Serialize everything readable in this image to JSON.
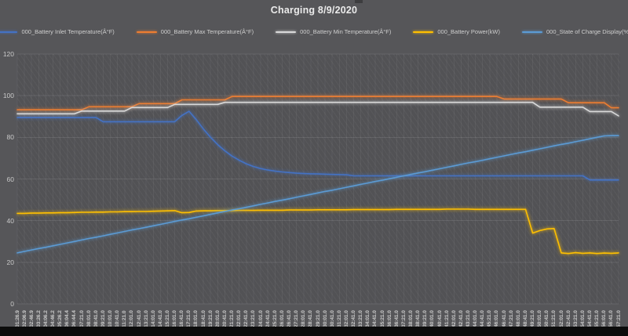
{
  "title": "Charging 8/9/2020",
  "colors": {
    "background": "#565659",
    "grid_horizontal": "rgba(255,255,255,0.10)",
    "grid_vertical": "rgba(255,255,255,0.055)",
    "axis_label": "#c9c9c9",
    "title_text": "#ebebeb"
  },
  "chart_data": {
    "type": "line",
    "title": "Charging 8/9/2020",
    "xlabel": "",
    "ylabel": "",
    "ylim": [
      0,
      120
    ],
    "y_ticks": [
      0,
      20,
      40,
      60,
      80,
      100,
      120
    ],
    "grid": true,
    "legend_position": "top",
    "x_ticks": [
      "01:26.9",
      "02:06.9",
      "02:46.9",
      "03:26.2",
      "04:06.2",
      "04:46.2",
      "05:26.2",
      "06:04.4",
      "06:44.4",
      "07:21.0",
      "08:01.0",
      "08:41.0",
      "09:21.0",
      "10:01.0",
      "10:41.0",
      "11:21.0",
      "12:01.0",
      "12:41.0",
      "13:21.0",
      "14:01.0",
      "14:41.0",
      "15:21.0",
      "16:01.0",
      "16:41.0",
      "17:21.0",
      "18:01.0",
      "18:41.0",
      "19:21.0",
      "20:01.0",
      "20:41.0",
      "21:21.0",
      "22:01.0",
      "22:41.0",
      "23:21.0",
      "24:01.0",
      "24:41.0",
      "25:21.0",
      "26:01.0",
      "26:41.0",
      "27:21.0",
      "28:01.0",
      "28:41.0",
      "29:21.0",
      "30:01.0",
      "30:41.0",
      "31:21.0",
      "32:01.0",
      "32:41.0",
      "33:21.0",
      "34:01.0",
      "34:41.0",
      "35:21.0",
      "36:01.0",
      "36:41.0",
      "37:21.0",
      "38:01.0",
      "38:41.0",
      "39:21.0",
      "40:01.0",
      "40:41.0",
      "41:21.0",
      "42:01.0",
      "42:41.0",
      "43:21.0",
      "44:01.0",
      "44:41.0",
      "45:21.0",
      "46:01.0",
      "46:41.0",
      "47:21.0",
      "48:01.0",
      "48:41.0",
      "49:21.0",
      "50:01.0",
      "50:41.0",
      "51:21.0",
      "52:01.0",
      "52:41.0",
      "53:21.0",
      "54:01.0",
      "54:41.0",
      "55:21.0",
      "56:01.0",
      "56:41.0",
      "57:21.0"
    ],
    "series": [
      {
        "name": "000_Battery Inlet Temperature(Â°F)",
        "color": "#4472c4",
        "values": [
          89.5,
          89.5,
          89.5,
          89.5,
          89.5,
          89.5,
          89.5,
          89.5,
          89.5,
          89.5,
          89.5,
          89.5,
          87.5,
          87.5,
          87.5,
          87.5,
          87.5,
          87.5,
          87.5,
          87.5,
          87.5,
          87.5,
          87.5,
          90.5,
          92.5,
          88.5,
          84,
          80,
          76.5,
          73.5,
          71,
          69,
          67.3,
          66,
          65,
          64.3,
          63.8,
          63.4,
          63.1,
          62.8,
          62.6,
          62.5,
          62.4,
          62.3,
          62.2,
          62.1,
          62,
          61.5,
          61.5,
          61.5,
          61.5,
          61.5,
          61.5,
          61.5,
          61.5,
          61.5,
          61.5,
          61.5,
          61.5,
          61.5,
          61.5,
          61.5,
          61.5,
          61.5,
          61.5,
          61.5,
          61.5,
          61.5,
          61.5,
          61.5,
          61.5,
          61.5,
          61.5,
          61.5,
          61.5,
          61.5,
          61.5,
          61.5,
          61.5,
          61.5,
          59.5,
          59.5,
          59.5,
          59.5,
          59.5
        ]
      },
      {
        "name": "000_Battery Max Temperature(Â°F)",
        "color": "#ed7d31",
        "values": [
          93.2,
          93.2,
          93.2,
          93.2,
          93.2,
          93.2,
          93.2,
          93.2,
          93.2,
          93.2,
          94.7,
          94.7,
          94.7,
          94.7,
          94.7,
          94.7,
          94.7,
          96.2,
          96.2,
          96.2,
          96.2,
          96.2,
          96.2,
          98,
          98,
          98,
          98,
          98,
          98,
          98,
          99.6,
          99.6,
          99.6,
          99.6,
          99.6,
          99.6,
          99.6,
          99.6,
          99.6,
          99.6,
          99.6,
          99.6,
          99.6,
          99.6,
          99.6,
          99.6,
          99.6,
          99.6,
          99.6,
          99.6,
          99.6,
          99.6,
          99.6,
          99.6,
          99.6,
          99.6,
          99.6,
          99.6,
          99.6,
          99.6,
          99.6,
          99.6,
          99.6,
          99.6,
          99.6,
          99.6,
          99.6,
          99.6,
          98.4,
          98.4,
          98.4,
          98.4,
          98.4,
          98.4,
          98.4,
          98.4,
          98.4,
          96.6,
          96.6,
          96.6,
          96.6,
          96.6,
          96.6,
          94.2,
          94.2
        ]
      },
      {
        "name": "000_Battery Min Temperature(Â°F)",
        "color": "#d9d9d9",
        "values": [
          91.3,
          91.3,
          91.3,
          91.3,
          91.3,
          91.3,
          91.3,
          91.3,
          91.3,
          92.6,
          92.6,
          92.6,
          92.6,
          92.6,
          92.6,
          92.6,
          94.3,
          94.3,
          94.3,
          94.3,
          94.3,
          94.3,
          95.8,
          95.8,
          95.8,
          95.8,
          95.8,
          95.8,
          95.8,
          96.8,
          96.8,
          96.8,
          96.8,
          96.8,
          96.8,
          96.8,
          96.8,
          96.8,
          96.8,
          96.8,
          96.8,
          96.8,
          96.8,
          96.8,
          96.8,
          96.8,
          96.8,
          96.8,
          96.8,
          96.8,
          96.8,
          96.8,
          96.8,
          96.8,
          96.8,
          96.8,
          96.8,
          96.8,
          96.8,
          96.8,
          96.8,
          96.8,
          96.8,
          96.8,
          96.8,
          96.8,
          96.8,
          96.8,
          96.8,
          96.8,
          96.8,
          96.8,
          96.8,
          94.5,
          94.5,
          94.5,
          94.5,
          94.5,
          94.5,
          94.5,
          92.4,
          92.4,
          92.4,
          92.4,
          90.3
        ]
      },
      {
        "name": "000_Battery Power(kW)",
        "color": "#ffc000",
        "values": [
          43.5,
          43.5,
          43.6,
          43.6,
          43.7,
          43.7,
          43.8,
          43.8,
          43.9,
          44,
          44,
          44.1,
          44.1,
          44.2,
          44.2,
          44.3,
          44.3,
          44.4,
          44.4,
          44.5,
          44.6,
          44.7,
          44.8,
          43.8,
          43.9,
          44.6,
          44.7,
          44.7,
          44.8,
          44.8,
          44.8,
          44.9,
          44.9,
          44.9,
          45,
          45,
          45,
          45,
          45.1,
          45.1,
          45.1,
          45.1,
          45.2,
          45.2,
          45.2,
          45.2,
          45.2,
          45.3,
          45.3,
          45.3,
          45.3,
          45.3,
          45.3,
          45.4,
          45.4,
          45.4,
          45.4,
          45.4,
          45.4,
          45.4,
          45.5,
          45.5,
          45.5,
          45.5,
          45.4,
          45.4,
          45.4,
          45.4,
          45.4,
          45.4,
          45.4,
          45.4,
          34,
          35.2,
          36,
          36.2,
          24.5,
          24.2,
          24.6,
          24.3,
          24.5,
          24.2,
          24.4,
          24.3,
          24.5
        ]
      },
      {
        "name": "000_State of Charge Display(%)",
        "color": "#5b9bd5",
        "values": [
          24.5,
          25.2,
          25.9,
          26.6,
          27.2,
          27.9,
          28.6,
          29.3,
          30,
          30.7,
          31.4,
          32,
          32.7,
          33.4,
          34.1,
          34.8,
          35.5,
          36.1,
          36.8,
          37.5,
          38.2,
          38.9,
          39.6,
          40.3,
          40.9,
          41.6,
          42.3,
          43,
          43.7,
          44.4,
          45.1,
          45.7,
          46.4,
          47.1,
          47.8,
          48.5,
          49.2,
          49.8,
          50.5,
          51.2,
          51.9,
          52.6,
          53.3,
          54,
          54.6,
          55.3,
          56,
          56.7,
          57.4,
          58.1,
          58.8,
          59.4,
          60.1,
          60.8,
          61.5,
          62.2,
          62.9,
          63.5,
          64.2,
          64.9,
          65.6,
          66.3,
          67,
          67.7,
          68.3,
          69,
          69.7,
          70.4,
          71.1,
          71.8,
          72.5,
          73.1,
          73.8,
          74.5,
          75.2,
          75.9,
          76.6,
          77.2,
          77.9,
          78.6,
          79.3,
          80,
          80.7,
          80.8,
          80.8
        ]
      }
    ]
  }
}
